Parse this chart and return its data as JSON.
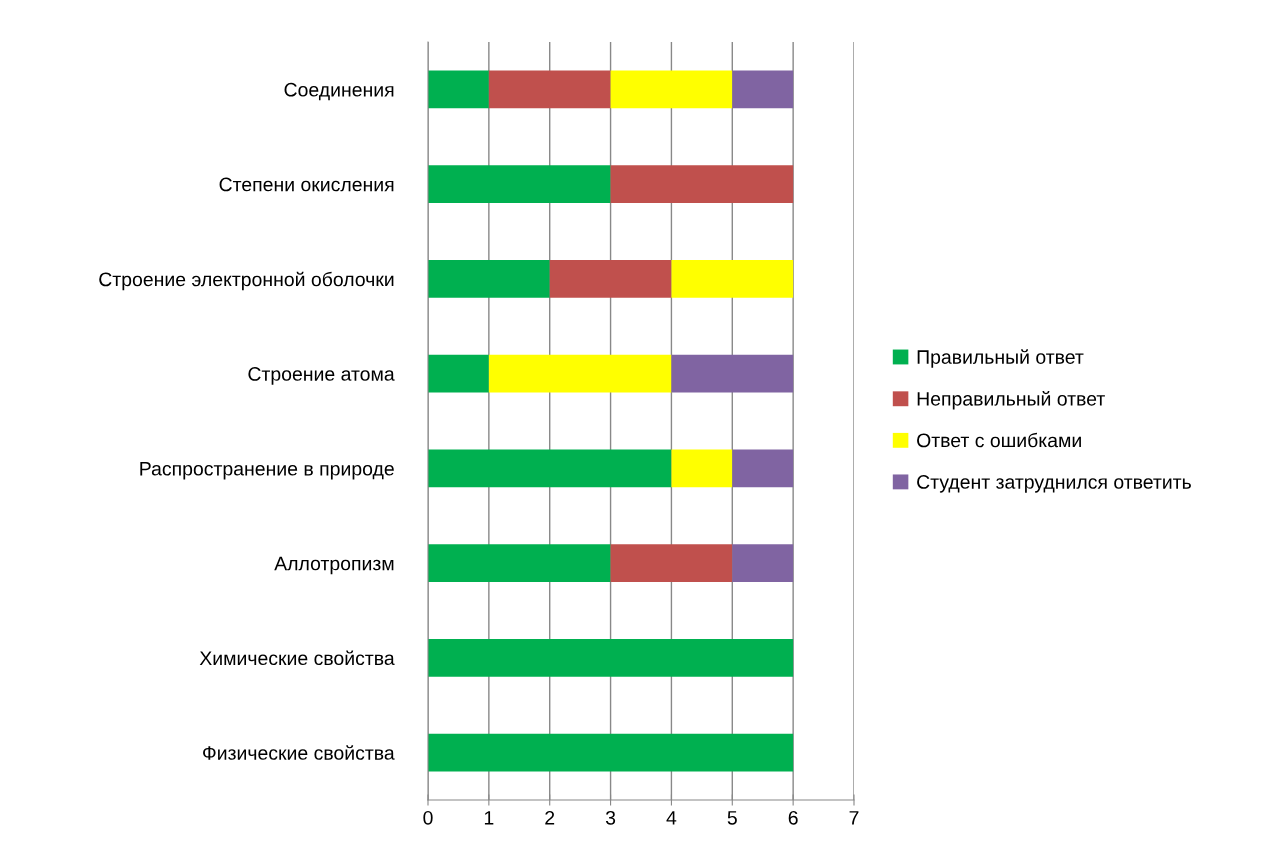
{
  "chart_data": {
    "type": "bar",
    "orientation": "horizontal",
    "stacked": true,
    "categories": [
      "Соединения",
      "Степени окисления",
      "Строение электронной оболочки",
      "Строение атома",
      "Распространение в природе",
      "Аллотропизм",
      "Химические свойства",
      "Физические свойства"
    ],
    "series": [
      {
        "name": "Правильный ответ",
        "color": "#00b050",
        "values": [
          1,
          3,
          2,
          1,
          4,
          3,
          6,
          6
        ]
      },
      {
        "name": "Неправильный ответ",
        "color": "#c0504d",
        "values": [
          2,
          3,
          2,
          0,
          0,
          2,
          0,
          0
        ]
      },
      {
        "name": "Ответ с ошибками",
        "color": "#ffff00",
        "values": [
          2,
          0,
          2,
          3,
          1,
          0,
          0,
          0
        ]
      },
      {
        "name": "Студент затруднился ответить",
        "color": "#8064a2",
        "values": [
          1,
          0,
          0,
          2,
          1,
          1,
          0,
          0
        ]
      }
    ],
    "xlim": [
      0,
      7
    ],
    "xticks": [
      0,
      1,
      2,
      3,
      4,
      5,
      6,
      7
    ],
    "grid": "x",
    "legend": "right"
  }
}
